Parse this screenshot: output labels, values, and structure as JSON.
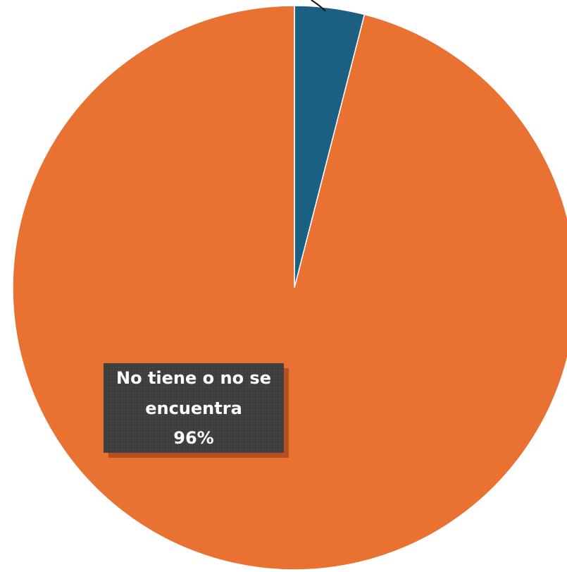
{
  "chart_data": {
    "type": "pie",
    "slices": [
      {
        "label": "",
        "value": 4,
        "color": "#1b5f82"
      },
      {
        "label": "No tiene o no se encuentra",
        "value": 96,
        "color": "#e97132"
      }
    ],
    "data_labels": [
      {
        "lines": [
          "No tiene o no se",
          "encuentra",
          "96%"
        ]
      }
    ],
    "legend": "none",
    "title": ""
  },
  "colors": {
    "orange": "#e97132",
    "blue": "#1b5f82",
    "label_box": "#3f3f3f",
    "label_shadow": "#b84f22"
  }
}
